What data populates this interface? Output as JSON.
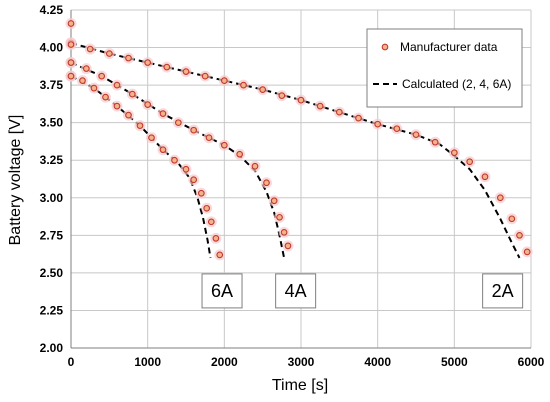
{
  "chart_data": {
    "type": "scatter",
    "xlabel": "Time [s]",
    "ylabel": "Battery voltage [V]",
    "xlim": [
      0,
      6000
    ],
    "ylim": [
      2.0,
      4.25
    ],
    "xticks": [
      0,
      1000,
      2000,
      3000,
      4000,
      5000,
      6000
    ],
    "yticks": [
      2.0,
      2.25,
      2.5,
      2.75,
      3.0,
      3.25,
      3.5,
      3.75,
      4.0,
      4.25
    ],
    "grid": true,
    "legend_position": "top-right",
    "colors": {
      "marker_edge": "#c0392b",
      "marker_fill": "#f2b38a",
      "marker_halo": "#f7c9cd",
      "calculated_line": "#000000",
      "grid": "#c8c8c8"
    },
    "series": [
      {
        "name": "Manufacturer data",
        "kind": "markers",
        "curves": [
          {
            "current": "2A",
            "x": [
              0,
              250,
              500,
              750,
              1000,
              1250,
              1500,
              1750,
              2000,
              2250,
              2500,
              2750,
              3000,
              3250,
              3500,
              3750,
              4000,
              4250,
              4500,
              4750,
              5000,
              5200,
              5400,
              5600,
              5750,
              5850,
              5950
            ],
            "y": [
              4.03,
              3.99,
              3.96,
              3.93,
              3.9,
              3.87,
              3.84,
              3.81,
              3.78,
              3.75,
              3.72,
              3.68,
              3.65,
              3.61,
              3.57,
              3.53,
              3.49,
              3.46,
              3.42,
              3.37,
              3.3,
              3.24,
              3.14,
              3.0,
              2.86,
              2.75,
              2.64
            ]
          },
          {
            "current": "4A",
            "x": [
              0,
              200,
              400,
              600,
              800,
              1000,
              1200,
              1400,
              1600,
              1800,
              2000,
              2200,
              2400,
              2550,
              2650,
              2720,
              2780,
              2830
            ],
            "y": [
              3.9,
              3.86,
              3.81,
              3.75,
              3.69,
              3.62,
              3.56,
              3.5,
              3.45,
              3.4,
              3.35,
              3.29,
              3.21,
              3.1,
              2.98,
              2.87,
              2.77,
              2.68
            ]
          },
          {
            "current": "6A",
            "x": [
              0,
              150,
              300,
              450,
              600,
              750,
              900,
              1050,
              1200,
              1350,
              1500,
              1600,
              1700,
              1770,
              1830,
              1890,
              1940
            ],
            "y": [
              3.81,
              3.78,
              3.73,
              3.67,
              3.61,
              3.55,
              3.48,
              3.4,
              3.32,
              3.25,
              3.19,
              3.12,
              3.03,
              2.93,
              2.84,
              2.73,
              2.62
            ]
          }
        ]
      },
      {
        "name": "Calculated (2, 4, 6A)",
        "kind": "dashed-line",
        "curves": [
          {
            "current": "2A",
            "x": [
              0,
              500,
              1000,
              1500,
              2000,
              2500,
              3000,
              3500,
              4000,
              4500,
              4800,
              5000,
              5200,
              5400,
              5600,
              5750,
              5850
            ],
            "y": [
              4.03,
              3.96,
              3.9,
              3.84,
              3.78,
              3.72,
              3.65,
              3.57,
              3.49,
              3.42,
              3.36,
              3.28,
              3.19,
              3.05,
              2.86,
              2.7,
              2.6
            ]
          },
          {
            "current": "4A",
            "x": [
              0,
              400,
              800,
              1200,
              1600,
              2000,
              2200,
              2400,
              2550,
              2650,
              2720,
              2780
            ],
            "y": [
              3.9,
              3.81,
              3.69,
              3.56,
              3.45,
              3.35,
              3.28,
              3.18,
              3.04,
              2.9,
              2.75,
              2.6
            ]
          },
          {
            "current": "6A",
            "x": [
              0,
              300,
              600,
              900,
              1200,
              1400,
              1550,
              1650,
              1720,
              1780,
              1820
            ],
            "y": [
              3.81,
              3.73,
              3.61,
              3.48,
              3.32,
              3.23,
              3.13,
              3.0,
              2.87,
              2.72,
              2.6
            ]
          }
        ]
      }
    ],
    "start_points": {
      "x": [
        0,
        0,
        0,
        0,
        0
      ],
      "y": [
        4.16,
        4.03,
        3.9,
        3.81,
        4.02
      ]
    },
    "annotations": [
      {
        "text": "6A",
        "x": 1970,
        "y": 2.38
      },
      {
        "text": "4A",
        "x": 2930,
        "y": 2.38
      },
      {
        "text": "2A",
        "x": 5630,
        "y": 2.38
      }
    ]
  }
}
